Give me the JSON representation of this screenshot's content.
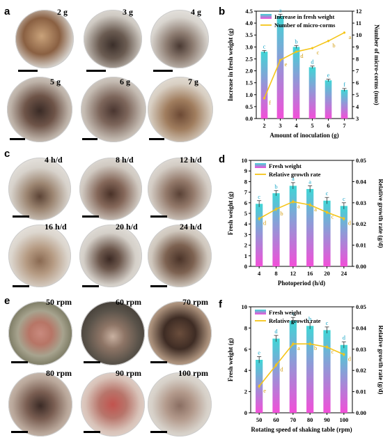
{
  "panels": {
    "a": {
      "letter": "a",
      "photos": [
        {
          "label": "2 g"
        },
        {
          "label": "3 g"
        },
        {
          "label": "4 g"
        },
        {
          "label": "5 g"
        },
        {
          "label": "6 g"
        },
        {
          "label": "7 g"
        }
      ]
    },
    "c": {
      "letter": "c",
      "photos": [
        {
          "label": "4 h/d"
        },
        {
          "label": "8 h/d"
        },
        {
          "label": "12 h/d"
        },
        {
          "label": "16 h/d"
        },
        {
          "label": "20 h/d"
        },
        {
          "label": "24 h/d"
        }
      ]
    },
    "e": {
      "letter": "e",
      "photos": [
        {
          "label": "50 rpm"
        },
        {
          "label": "60 rpm"
        },
        {
          "label": "70 rpm"
        },
        {
          "label": "80 rpm"
        },
        {
          "label": "90 rpm"
        },
        {
          "label": "100 rpm"
        }
      ]
    }
  },
  "colors": {
    "bar_top": "#3fd6d6",
    "bar_bottom": "#f24fd8",
    "line": "#f5c518",
    "letter_bar": "#1aa6c7",
    "letter_line": "#d4a017"
  },
  "chart_data": [
    {
      "letter": "b",
      "type": "bar+line",
      "categories": [
        "2",
        "3",
        "4",
        "5",
        "6",
        "7"
      ],
      "xlabel": "Amount of inoculation (g)",
      "ylabel": "Increase in fresh weight (g)",
      "y2label": "Number of micro-corms (nuo)",
      "ylim": [
        0,
        4.5
      ],
      "yticks": [
        "0.0",
        "0.5",
        "1.0",
        "1.5",
        "2.0",
        "2.5",
        "3.0",
        "3.5",
        "4.0",
        "4.5"
      ],
      "y2lim": [
        3,
        12
      ],
      "y2ticks": [
        "3",
        "4",
        "5",
        "6",
        "7",
        "8",
        "9",
        "10",
        "11",
        "12"
      ],
      "legend": [
        "Increase in fresh weight",
        "Number of micro-corms"
      ],
      "legend_position": "top-left",
      "series": [
        {
          "name": "Increase in fresh weight",
          "axis": "left",
          "kind": "bar",
          "values": [
            2.8,
            4.3,
            3.0,
            2.15,
            1.6,
            1.2
          ],
          "errors": [
            0.05,
            0.07,
            0.06,
            0.05,
            0.05,
            0.06
          ],
          "letters": [
            "c",
            "a",
            "b",
            "d",
            "e",
            "f"
          ]
        },
        {
          "name": "Number of micro-corms",
          "axis": "right",
          "kind": "line",
          "values": [
            4.7,
            7.9,
            8.6,
            8.9,
            9.5,
            10.2
          ],
          "errors": [
            0.1,
            0.1,
            0.1,
            0.1,
            0.1,
            0.1
          ],
          "letters": [
            "f",
            "e",
            "d",
            "c",
            "b",
            "a"
          ]
        }
      ]
    },
    {
      "letter": "d",
      "type": "bar+line",
      "categories": [
        "4",
        "8",
        "12",
        "16",
        "20",
        "24"
      ],
      "xlabel": "Photoperiod (h/d)",
      "ylabel": "Fresh weight (g)",
      "y2label": "Relative growth rate (g/d)",
      "ylim": [
        0,
        10
      ],
      "yticks": [
        "0",
        "1",
        "2",
        "3",
        "4",
        "5",
        "6",
        "7",
        "8",
        "9",
        "10"
      ],
      "y2lim": [
        0,
        0.05
      ],
      "y2ticks": [
        "0.00",
        "0.01",
        "0.02",
        "0.03",
        "0.04",
        "0.05"
      ],
      "legend": [
        "Fresh weight",
        "Relative growth rate"
      ],
      "legend_position": "top-left",
      "series": [
        {
          "name": "Fresh weight",
          "axis": "left",
          "kind": "bar",
          "values": [
            5.9,
            6.9,
            7.6,
            7.3,
            6.2,
            5.7
          ],
          "errors": [
            0.3,
            0.25,
            0.3,
            0.3,
            0.3,
            0.3
          ],
          "letters": [
            "c",
            "b",
            "a",
            "a",
            "c",
            "c"
          ]
        },
        {
          "name": "Relative growth rate",
          "axis": "right",
          "kind": "line",
          "values": [
            0.0225,
            0.027,
            0.0305,
            0.029,
            0.0255,
            0.0225
          ],
          "errors": [
            0.001,
            0.001,
            0.001,
            0.001,
            0.001,
            0.001
          ],
          "letters": [
            "d",
            "b",
            "a",
            "a",
            "c",
            "d"
          ]
        }
      ]
    },
    {
      "letter": "f",
      "type": "bar+line",
      "categories": [
        "50",
        "60",
        "70",
        "80",
        "90",
        "100"
      ],
      "xlabel": "Rotating speed of shaking table (rpm)",
      "ylabel": "Fresh weight (g)",
      "y2label": "Relative growth rate (g/d)",
      "ylim": [
        0,
        10
      ],
      "yticks": [
        "0",
        "2",
        "4",
        "6",
        "8",
        "10"
      ],
      "y2lim": [
        0,
        0.05
      ],
      "y2ticks": [
        "0.00",
        "0.01",
        "0.02",
        "0.03",
        "0.04",
        "0.05"
      ],
      "legend": [
        "Fresh weight",
        "Relative growth rate"
      ],
      "legend_position": "top-left",
      "series": [
        {
          "name": "Fresh weight",
          "axis": "left",
          "kind": "bar",
          "values": [
            5.0,
            7.0,
            8.7,
            8.2,
            7.8,
            6.4
          ],
          "errors": [
            0.3,
            0.3,
            0.3,
            0.3,
            0.3,
            0.3
          ],
          "letters": [
            "e",
            "d",
            "a",
            "b",
            "c",
            "d"
          ]
        },
        {
          "name": "Relative growth rate",
          "axis": "right",
          "kind": "line",
          "values": [
            0.0125,
            0.0225,
            0.0325,
            0.0325,
            0.031,
            0.0275
          ],
          "errors": [
            0.001,
            0.001,
            0.001,
            0.001,
            0.001,
            0.001
          ],
          "letters": [
            "e",
            "d",
            "a",
            "b",
            "c",
            "d"
          ]
        }
      ]
    }
  ]
}
